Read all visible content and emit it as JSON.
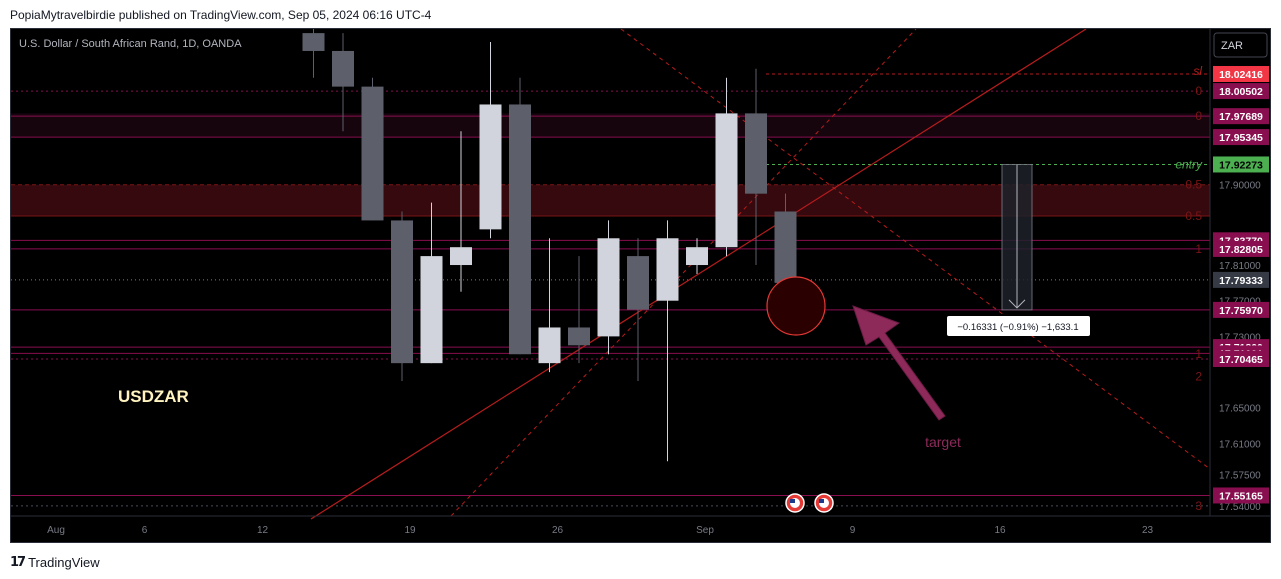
{
  "header": {
    "publisher_line": "PopiaMytravelbirdie published on TradingView.com, Sep 05, 2024 06:16 UTC-4"
  },
  "footer": {
    "logo_text": "TradingView",
    "logo_icon": "tradingview-logo-icon"
  },
  "chart_data": {
    "type": "candlestick",
    "symbol_info": "U.S. Dollar / South African Rand, 1D, OANDA",
    "currency_button": "ZAR",
    "symbol_label": "USDZAR",
    "target_label": "target",
    "entry_label": "entry",
    "sl_label": "sl",
    "ylim": [
      17.54,
      18.05
    ],
    "x_tick_labels": [
      {
        "label": "Aug",
        "x": 0
      },
      {
        "label": "6",
        "x": 3
      },
      {
        "label": "12",
        "x": 7
      },
      {
        "label": "19",
        "x": 12
      },
      {
        "label": "26",
        "x": 17
      },
      {
        "label": "Sep",
        "x": 22
      },
      {
        "label": "9",
        "x": 27
      },
      {
        "label": "16",
        "x": 32
      },
      {
        "label": "23",
        "x": 37
      }
    ],
    "y_tick_labels": [
      17.9,
      17.81,
      17.77,
      17.73,
      17.65,
      17.61,
      17.575,
      17.54
    ],
    "candles": [
      {
        "x": 9,
        "open": 18.07,
        "high": 18.08,
        "low": 18.02,
        "close": 18.05
      },
      {
        "x": 10,
        "open": 18.05,
        "high": 18.07,
        "low": 17.96,
        "close": 18.01
      },
      {
        "x": 11,
        "open": 18.01,
        "high": 18.02,
        "low": 17.86,
        "close": 17.86
      },
      {
        "x": 12,
        "open": 17.86,
        "high": 17.87,
        "low": 17.68,
        "close": 17.7
      },
      {
        "x": 13,
        "open": 17.7,
        "high": 17.88,
        "low": 17.7,
        "close": 17.82
      },
      {
        "x": 14,
        "open": 17.81,
        "high": 17.96,
        "low": 17.78,
        "close": 17.83
      },
      {
        "x": 15,
        "open": 17.85,
        "high": 18.06,
        "low": 17.84,
        "close": 17.99
      },
      {
        "x": 16,
        "open": 17.99,
        "high": 18.02,
        "low": 17.71,
        "close": 17.71
      },
      {
        "x": 17,
        "open": 17.7,
        "high": 17.84,
        "low": 17.69,
        "close": 17.74
      },
      {
        "x": 18,
        "open": 17.74,
        "high": 17.82,
        "low": 17.7,
        "close": 17.72
      },
      {
        "x": 19,
        "open": 17.73,
        "high": 17.86,
        "low": 17.71,
        "close": 17.84
      },
      {
        "x": 20,
        "open": 17.82,
        "high": 17.84,
        "low": 17.68,
        "close": 17.76
      },
      {
        "x": 21,
        "open": 17.77,
        "high": 17.86,
        "low": 17.59,
        "close": 17.84
      },
      {
        "x": 22,
        "open": 17.81,
        "high": 17.84,
        "low": 17.8,
        "close": 17.83
      },
      {
        "x": 23,
        "open": 17.83,
        "high": 18.02,
        "low": 17.82,
        "close": 17.98
      },
      {
        "x": 24,
        "open": 17.98,
        "high": 18.03,
        "low": 17.81,
        "close": 17.89
      },
      {
        "x": 25,
        "open": 17.87,
        "high": 17.89,
        "low": 17.76,
        "close": 17.79
      }
    ],
    "price_labels": [
      {
        "value": "18.02416",
        "price": 18.02416,
        "bg": "#f23645",
        "fg": "#ffffff"
      },
      {
        "value": "18.00502",
        "price": 18.00502,
        "bg": "#880e4f",
        "fg": "#ffffff"
      },
      {
        "value": "17.97689",
        "price": 17.97689,
        "bg": "#880e4f",
        "fg": "#ffffff"
      },
      {
        "value": "17.95345",
        "price": 17.95345,
        "bg": "#880e4f",
        "fg": "#ffffff"
      },
      {
        "value": "17.92273",
        "price": 17.92273,
        "bg": "#4caf50",
        "fg": "#000000"
      },
      {
        "value": "17.83770",
        "price": 17.8377,
        "bg": "#880e4f",
        "fg": "#ffffff"
      },
      {
        "value": "17.82805",
        "price": 17.82805,
        "bg": "#880e4f",
        "fg": "#ffffff"
      },
      {
        "value": "17.79333",
        "price": 17.79333,
        "bg": "#363a45",
        "fg": "#ffffff"
      },
      {
        "value": "17.75970",
        "price": 17.7597,
        "bg": "#880e4f",
        "fg": "#ffffff"
      },
      {
        "value": "17.71800",
        "price": 17.718,
        "bg": "#880e4f",
        "fg": "#ffffff"
      },
      {
        "value": "17.71091",
        "price": 17.71091,
        "bg": "#880e4f",
        "fg": "#ffffff"
      },
      {
        "value": "17.70465",
        "price": 17.70465,
        "bg": "#880e4f",
        "fg": "#ffffff"
      },
      {
        "value": "17.55165",
        "price": 17.55165,
        "bg": "#880e4f",
        "fg": "#ffffff"
      }
    ],
    "fib_labels": [
      {
        "label": "0",
        "price": 18.005
      },
      {
        "label": "0",
        "price": 17.977
      },
      {
        "label": "0.5",
        "price": 17.9
      },
      {
        "label": "0.5",
        "price": 17.865
      },
      {
        "label": "1",
        "price": 17.828
      },
      {
        "label": "1",
        "price": 17.71
      },
      {
        "label": "2",
        "price": 17.685
      },
      {
        "label": "3",
        "price": 17.54
      }
    ],
    "measure_tooltip": "−0.16331 (−0.91%) −1,633.1",
    "colors": {
      "bull": "#d1d4dc",
      "bear": "#5d606b",
      "level": "#880e4f",
      "trend": "#b71c1c",
      "entry": "#4caf50",
      "target": "#8e2a5a"
    }
  }
}
